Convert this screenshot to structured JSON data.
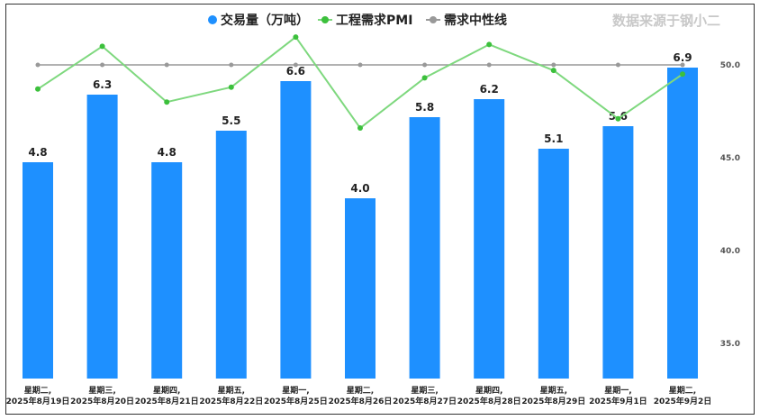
{
  "source_note": "数据来源于钢小二",
  "colors": {
    "bar": "#1e90ff",
    "pmi_line": "#7ed87e",
    "pmi_point": "#3cc03c",
    "neutral_line": "#999999",
    "neutral_point": "#999999"
  },
  "chart_data": {
    "type": "bar",
    "categories": [
      [
        "星期二,",
        "2025年8月19日"
      ],
      [
        "星期三,",
        "2025年8月20日"
      ],
      [
        "星期四,",
        "2025年8月21日"
      ],
      [
        "星期五,",
        "2025年8月22日"
      ],
      [
        "星期一,",
        "2025年8月25日"
      ],
      [
        "星期二,",
        "2025年8月26日"
      ],
      [
        "星期三,",
        "2025年8月27日"
      ],
      [
        "星期四,",
        "2025年8月28日"
      ],
      [
        "星期五,",
        "2025年8月29日"
      ],
      [
        "星期一,",
        "2025年9月1日"
      ],
      [
        "星期二,",
        "2025年9月2日"
      ]
    ],
    "series": [
      {
        "name": "交易量（万吨）",
        "type": "bar",
        "values": [
          4.8,
          6.3,
          4.8,
          5.5,
          6.6,
          4.0,
          5.8,
          6.2,
          5.1,
          5.6,
          6.9
        ],
        "data_labels": [
          "4.8",
          "6.3",
          "4.8",
          "5.5",
          "6.6",
          "4.0",
          "5.8",
          "6.2",
          "5.1",
          "5.6",
          "6.9"
        ]
      },
      {
        "name": "工程需求PMI",
        "type": "line",
        "axis": "right",
        "values": [
          48.7,
          51.0,
          48.0,
          48.8,
          51.5,
          46.6,
          49.3,
          51.1,
          49.7,
          47.1,
          49.5
        ]
      },
      {
        "name": "需求中性线",
        "type": "line",
        "axis": "right",
        "values": [
          50,
          50,
          50,
          50,
          50,
          50,
          50,
          50,
          50,
          50,
          50
        ]
      }
    ],
    "y_left_range": [
      0,
      8.5
    ],
    "y_right_range": [
      32.5,
      52.5
    ],
    "y_right_ticks": [
      "35.0",
      "40.0",
      "45.0",
      "50.0"
    ],
    "legend_position": "top-center",
    "grid": false
  }
}
